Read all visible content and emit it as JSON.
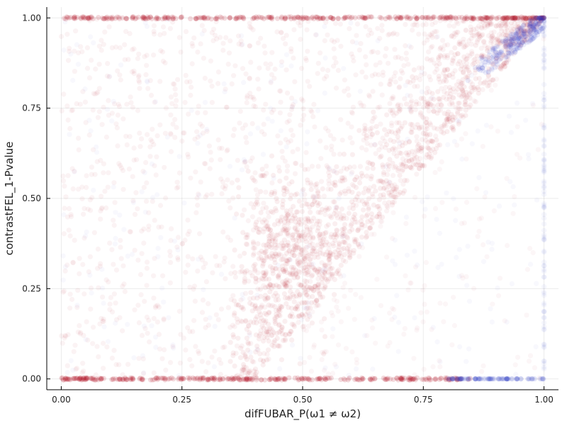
{
  "chart_data": {
    "type": "scatter",
    "title": "",
    "xlabel": "difFUBAR_P(ω1 ≠ ω2)",
    "ylabel": "contrastFEL_1-Pvalue",
    "xlim": [
      -0.03,
      1.03
    ],
    "ylim": [
      -0.03,
      1.03
    ],
    "x_ticks": [
      {
        "value": 0.0,
        "label": "0.00"
      },
      {
        "value": 0.25,
        "label": "0.25"
      },
      {
        "value": 0.5,
        "label": "0.50"
      },
      {
        "value": 0.75,
        "label": "0.75"
      },
      {
        "value": 1.0,
        "label": "1.00"
      }
    ],
    "y_ticks": [
      {
        "value": 0.0,
        "label": "0.00"
      },
      {
        "value": 0.25,
        "label": "0.25"
      },
      {
        "value": 0.5,
        "label": "0.50"
      },
      {
        "value": 0.75,
        "label": "0.75"
      },
      {
        "value": 1.0,
        "label": "1.00"
      }
    ],
    "grid": true,
    "legend": "none",
    "point_alpha": 0.05,
    "series": [
      {
        "color": "#b2182b",
        "density_summary": {
          "x_min": 0.0,
          "x_max": 1.0,
          "y_min": 0.0,
          "y_max": 1.0,
          "dense_lines": [
            {
              "y": 0.0,
              "x_from": 0.0,
              "x_to": 0.85
            },
            {
              "y": 1.0,
              "x_from": 0.0,
              "x_to": 1.0
            }
          ],
          "dense_wedge_lower_edge": [
            [
              0.4,
              0.0
            ],
            [
              0.7,
              0.5
            ],
            [
              1.0,
              1.0
            ]
          ],
          "dense_hotspot": {
            "x": 0.47,
            "y": 0.35
          }
        }
      },
      {
        "color": "#2b3bc6",
        "density_summary": {
          "x_min": 0.0,
          "x_max": 1.0,
          "y_min": 0.0,
          "y_max": 1.0,
          "dense_region": {
            "x_from": 0.85,
            "x_to": 1.0,
            "y_from": 0.85,
            "y_to": 1.0
          },
          "dense_lines": [
            {
              "x": 1.0,
              "y_from": 0.0,
              "y_to": 1.0
            },
            {
              "y": 0.0,
              "x_from": 0.8,
              "x_to": 1.0
            }
          ]
        }
      }
    ]
  }
}
